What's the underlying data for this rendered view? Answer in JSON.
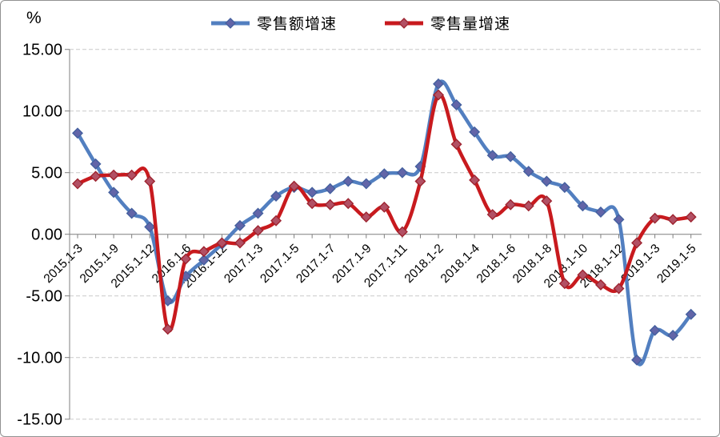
{
  "chart_data": {
    "type": "line",
    "title": "",
    "unit_label": "%",
    "ylim": [
      -15,
      15
    ],
    "grid": "dashed horizontal gridlines, solid zero axis",
    "legend_position": "top-center",
    "y_axis": {
      "ticks": [
        "15.00",
        "10.00",
        "5.00",
        "0.00",
        "-5.00",
        "-10.00",
        "-15.00"
      ],
      "values": [
        15,
        10,
        5,
        0,
        -5,
        -10,
        -15
      ]
    },
    "x_labels": [
      "2015.1-3",
      "2015.1-9",
      "2015.1-12",
      "2016.1-6",
      "2016.1-12",
      "2017.1-3",
      "2017.1-5",
      "2017.1-7",
      "2017.1-9",
      "2017.1-11",
      "2018.1-2",
      "2018.1-4",
      "2018.1-6",
      "2018.1-8",
      "2018.1-10",
      "2018.1-12",
      "2019.1-3",
      "2019.1-5"
    ],
    "label_every": 2,
    "points_count": 35,
    "series": [
      {
        "name": "零售额增速",
        "color": "#527FC0",
        "marker_fill": "#6265A8",
        "marker_stroke": "#44609F",
        "marker": "diamond",
        "values": [
          8.2,
          5.7,
          3.4,
          1.7,
          0.6,
          -5.4,
          -3.4,
          -2.1,
          -0.8,
          0.7,
          1.7,
          3.1,
          3.8,
          3.4,
          3.7,
          4.3,
          4.1,
          4.9,
          5.0,
          5.5,
          12.2,
          10.5,
          8.3,
          6.4,
          6.3,
          5.1,
          4.3,
          3.8,
          2.3,
          1.8,
          1.2,
          -10.2,
          -7.8,
          -8.2,
          -6.5
        ]
      },
      {
        "name": "零售量增速",
        "color": "#C81A1E",
        "marker_fill": "#B25064",
        "marker_stroke": "#9E2430",
        "marker": "diamond",
        "values": [
          4.1,
          4.7,
          4.8,
          4.8,
          4.3,
          -7.7,
          -2.0,
          -1.4,
          -0.7,
          -0.7,
          0.3,
          1.1,
          3.9,
          2.5,
          2.4,
          2.5,
          1.4,
          2.2,
          0.2,
          4.3,
          11.3,
          7.3,
          4.4,
          1.6,
          2.4,
          2.3,
          2.7,
          -4.0,
          -3.3,
          -4.1,
          -4.4,
          -0.7,
          1.3,
          1.2,
          1.4
        ]
      }
    ],
    "axis_color": "#7F7F7F",
    "gridline_color": "#C9C9C9",
    "text_color": "#000000"
  }
}
